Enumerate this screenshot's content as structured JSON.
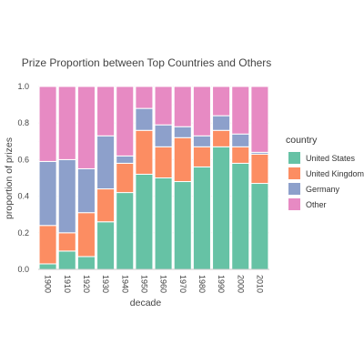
{
  "chart_data": {
    "type": "bar",
    "stacked": true,
    "title": "Prize Proportion between Top Countries and Others",
    "xlabel": "decade",
    "ylabel": "proportion of prizes",
    "ylim": [
      0,
      1
    ],
    "yticks": [
      "0.0",
      "0.2",
      "0.4",
      "0.6",
      "0.8",
      "1.0"
    ],
    "categories": [
      "1900",
      "1910",
      "1920",
      "1930",
      "1940",
      "1950",
      "1960",
      "1970",
      "1980",
      "1990",
      "2000",
      "2010"
    ],
    "legend_title": "country",
    "legend_position": "right",
    "series": [
      {
        "name": "United States",
        "color": "#66c2a5",
        "values": [
          0.03,
          0.1,
          0.07,
          0.26,
          0.42,
          0.52,
          0.5,
          0.48,
          0.56,
          0.67,
          0.58,
          0.47
        ]
      },
      {
        "name": "United Kingdom",
        "color": "#fc8d62",
        "values": [
          0.21,
          0.1,
          0.24,
          0.18,
          0.16,
          0.24,
          0.17,
          0.24,
          0.11,
          0.09,
          0.09,
          0.16
        ]
      },
      {
        "name": "Germany",
        "color": "#8da0cb",
        "values": [
          0.35,
          0.4,
          0.24,
          0.29,
          0.04,
          0.12,
          0.12,
          0.06,
          0.06,
          0.08,
          0.07,
          0.01
        ]
      },
      {
        "name": "Other",
        "color": "#e78ac3",
        "values": [
          0.41,
          0.4,
          0.45,
          0.27,
          0.38,
          0.12,
          0.21,
          0.22,
          0.27,
          0.16,
          0.26,
          0.36
        ]
      }
    ]
  }
}
